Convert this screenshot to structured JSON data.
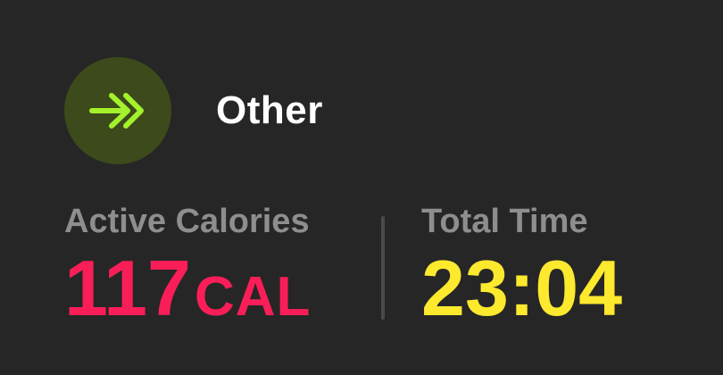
{
  "workout": {
    "icon": "double-chevron-arrow-icon",
    "title": "Other"
  },
  "metrics": {
    "calories": {
      "label": "Active Calories",
      "value": "117",
      "unit": "CAL"
    },
    "time": {
      "label": "Total Time",
      "value": "23:04"
    }
  },
  "colors": {
    "background": "#262626",
    "icon_bg": "#3d4a1b",
    "icon_fg": "#a3f22b",
    "calories": "#fa1e58",
    "time": "#fde92e",
    "label": "#8e8e8e"
  }
}
